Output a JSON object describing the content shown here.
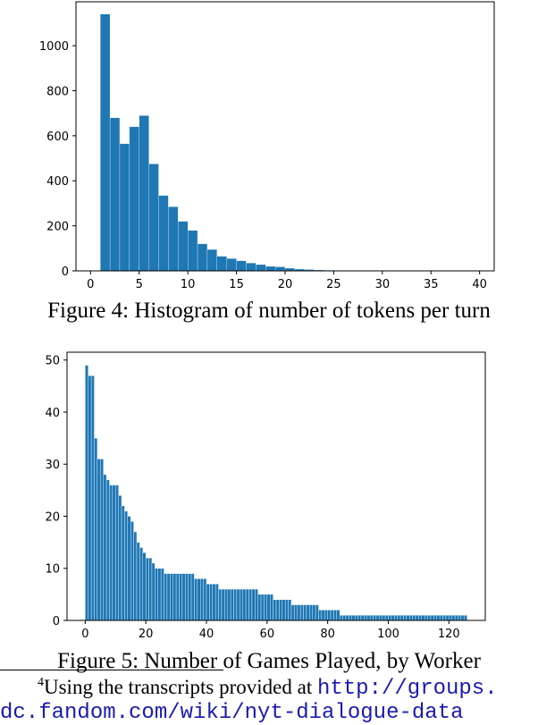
{
  "chart_data": [
    {
      "type": "bar",
      "x": [
        1,
        2,
        3,
        4,
        5,
        6,
        7,
        8,
        9,
        10,
        11,
        12,
        13,
        14,
        15,
        16,
        17,
        18,
        19,
        20,
        21,
        22,
        23,
        24,
        25,
        26,
        27,
        28,
        29,
        30,
        31,
        32,
        33,
        34,
        35,
        36,
        37,
        38,
        39
      ],
      "values": [
        1140,
        680,
        565,
        640,
        690,
        475,
        335,
        285,
        220,
        180,
        120,
        95,
        65,
        55,
        45,
        35,
        28,
        20,
        18,
        12,
        8,
        6,
        4,
        3,
        2,
        2,
        1,
        1,
        1,
        1,
        1,
        1,
        1,
        1,
        1,
        1,
        1,
        1,
        1
      ],
      "title": "",
      "xlabel": "",
      "ylabel": "",
      "xlim": [
        -1.5,
        41.5
      ],
      "ylim": [
        0,
        1195
      ],
      "xticks": [
        "0",
        "5",
        "10",
        "15",
        "20",
        "25",
        "30",
        "35",
        "40"
      ],
      "yticks": [
        "0",
        "200",
        "400",
        "600",
        "800",
        "1000"
      ],
      "color": "#1f77b4"
    },
    {
      "type": "bar",
      "x_start": 0,
      "values": [
        49,
        47,
        47,
        35,
        31,
        31,
        28,
        27,
        26,
        26,
        26,
        24,
        22,
        21,
        20,
        19,
        17,
        15,
        14,
        13,
        12,
        12,
        11,
        10,
        10,
        10,
        9,
        9,
        9,
        9,
        9,
        9,
        9,
        9,
        9,
        9,
        8,
        8,
        8,
        8,
        7,
        7,
        7,
        7,
        6,
        6,
        6,
        6,
        6,
        6,
        6,
        6,
        6,
        6,
        6,
        6,
        6,
        5,
        5,
        5,
        5,
        5,
        4,
        4,
        4,
        4,
        4,
        4,
        3,
        3,
        3,
        3,
        3,
        3,
        3,
        3,
        3,
        2,
        2,
        2,
        2,
        2,
        2,
        2,
        1,
        1,
        1,
        1,
        1,
        1,
        1,
        1,
        1,
        1,
        1,
        1,
        1,
        1,
        1,
        1,
        1,
        1,
        1,
        1,
        1,
        1,
        1,
        1,
        1,
        1,
        1,
        1,
        1,
        1,
        1,
        1,
        1,
        1,
        1,
        1,
        1,
        1,
        1,
        1,
        1,
        1
      ],
      "title": "",
      "xlabel": "",
      "ylabel": "",
      "xlim": [
        -6,
        132
      ],
      "ylim": [
        0,
        51.5
      ],
      "xticks": [
        "0",
        "20",
        "40",
        "60",
        "80",
        "100",
        "120"
      ],
      "yticks": [
        "0",
        "10",
        "20",
        "30",
        "40",
        "50"
      ],
      "color": "#1f77b4"
    }
  ],
  "captions": {
    "fig4": "Figure 4: Histogram of number of tokens per turn",
    "fig5": "Figure 5: Number of Games Played, by Worker"
  },
  "footnote": {
    "marker": "4",
    "text": "Using the transcripts provided at ",
    "url_part1": "http://groups.",
    "url_part2": "dc.fandom.com/wiki/nyt-dialogue-data"
  }
}
